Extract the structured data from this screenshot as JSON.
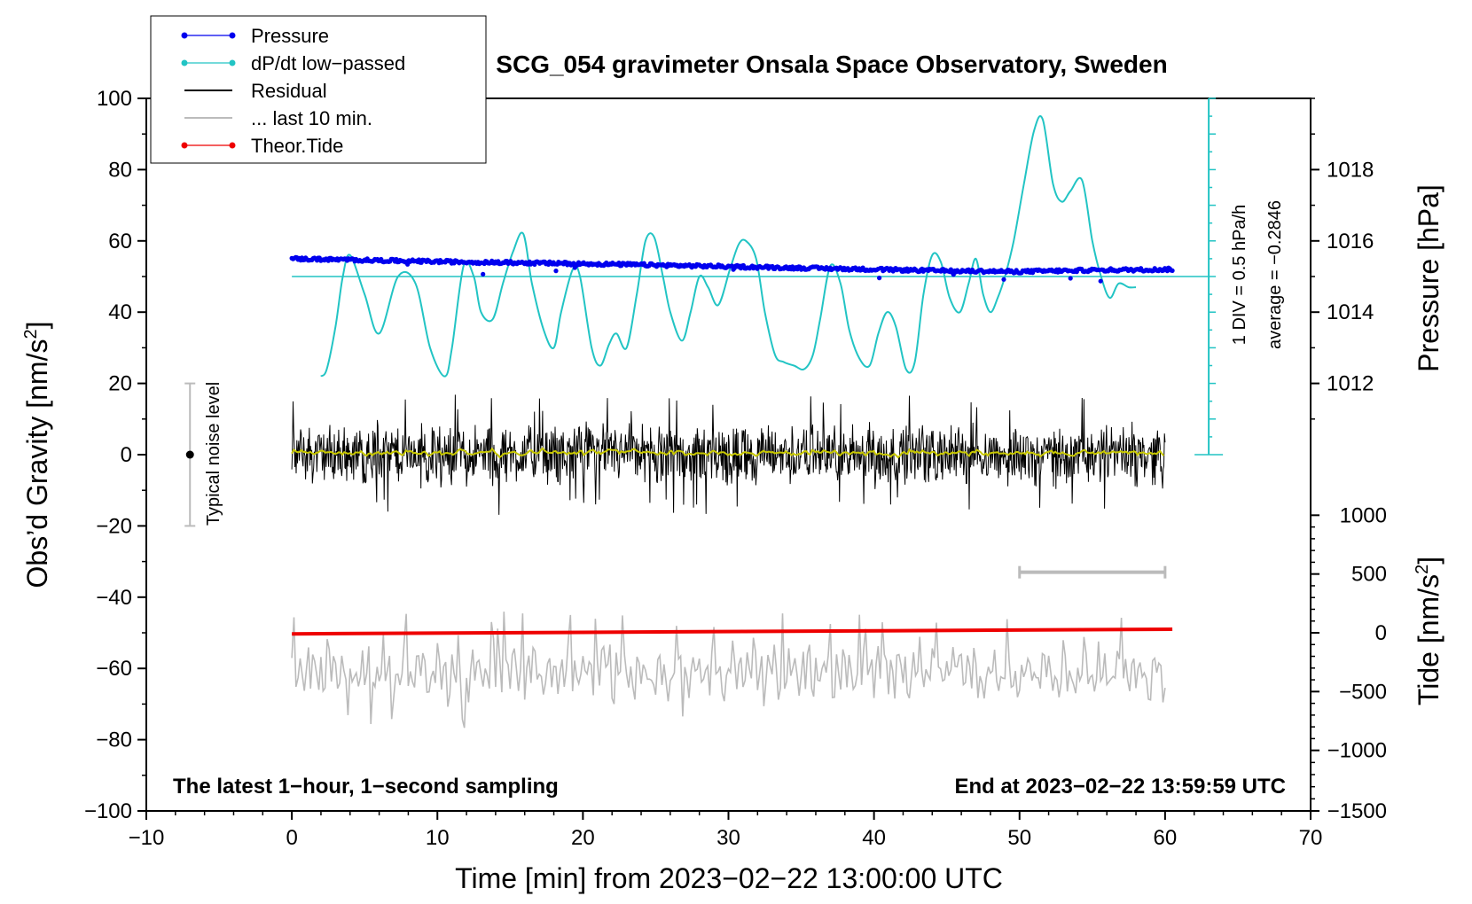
{
  "chart_data": {
    "type": "line",
    "title": "SCG_054 gravimeter Onsala Space Observatory, Sweden",
    "xlabel": "Time [min] from 2023−02−22 13:00:00 UTC",
    "ylabel": "Obs’d Gravity [nm/s²]",
    "ylabel_main": "Obs’d Gravity [nm/s",
    "ylabel_sup": "2",
    "ylabel_close": "]",
    "y2label": "Pressure [hPa]",
    "y3label_main": "Tide [nm/s",
    "y3label_sup": "2",
    "y3label_close": "]",
    "xlim": [
      -10,
      70
    ],
    "ylim": [
      -100,
      100
    ],
    "x_ticks": [
      -10,
      0,
      10,
      20,
      30,
      40,
      50,
      60,
      70
    ],
    "x_tick_labels": [
      "−10",
      "0",
      "10",
      "20",
      "30",
      "40",
      "50",
      "60",
      "70"
    ],
    "y_ticks": [
      -100,
      -80,
      -60,
      -40,
      -20,
      0,
      20,
      40,
      60,
      80,
      100
    ],
    "y_tick_labels": [
      "−100",
      "−80",
      "−60",
      "−40",
      "−20",
      "0",
      "20",
      "40",
      "60",
      "80",
      "100"
    ],
    "pressure_axis": {
      "ticks": [
        1012,
        1014,
        1016,
        1018
      ],
      "tick_labels": [
        "1012",
        "1014",
        "1016",
        "1018"
      ],
      "gravity_equivalent": [
        20,
        40,
        60,
        80
      ]
    },
    "tide_axis": {
      "ticks": [
        1000,
        500,
        0,
        -500,
        -1000,
        -1500
      ],
      "tick_labels": [
        "1000",
        "500",
        "0",
        "−500",
        "−1000",
        "−1500"
      ],
      "gravity_equivalent": [
        -17,
        -33.5,
        -50,
        -66.5,
        -83,
        -100
      ]
    },
    "legend": [
      {
        "label": "Pressure",
        "color": "#0000ee",
        "marker": true
      },
      {
        "label": "dP/dt low−passed",
        "color": "#22c4c4",
        "marker": true
      },
      {
        "label": "Residual",
        "color": "#000000",
        "marker": false
      },
      {
        "label": "... last 10 min.",
        "color": "#bbbbbb",
        "marker": false
      },
      {
        "label": "Theor.Tide",
        "color": "#ee0000",
        "marker": true
      }
    ],
    "legend_position": "top-left",
    "notes": {
      "bottom_left": "The latest 1−hour, 1−second sampling",
      "bottom_right": "End at 2023−02−22 13:59:59 UTC",
      "noise_label": "Typical noise level",
      "div_label": "1 DIV = 0.5 hPa/h",
      "average_label": "average = −0.2846"
    },
    "colors": {
      "pressure": "#0000ee",
      "dpdt": "#22c4c4",
      "residual": "#000000",
      "residual_smooth": "#c8c800",
      "last10": "#bbbbbb",
      "tide": "#ee0000"
    },
    "noise_bar": {
      "x": -7,
      "y": 0,
      "y_low": -20,
      "y_high": 20
    },
    "last10_bar": {
      "x_start": 50,
      "x_end": 60,
      "y": -33
    },
    "dpdt_scale": {
      "x": 63,
      "y_bottom": 0,
      "y_top": 100,
      "divisions": 20
    },
    "dpdt_baseline_y": 50,
    "series": [
      {
        "name": "Pressure",
        "x": [
          0,
          5,
          10,
          15,
          20,
          25,
          30,
          35,
          40,
          45,
          50,
          55,
          60.5
        ],
        "values": [
          55,
          54.6,
          54.2,
          53.9,
          53.6,
          53.2,
          52.8,
          52.4,
          52,
          51.6,
          51.4,
          51.8,
          52
        ]
      },
      {
        "name": "dP/dt low-passed",
        "x": [
          2,
          2.4,
          3,
          3.5,
          4,
          5,
          6,
          7.3,
          8.5,
          9.5,
          10.5,
          11,
          11.8,
          12.5,
          13,
          13.8,
          14.5,
          15.2,
          15.9,
          16.5,
          17.3,
          18,
          18.5,
          19.3,
          19.8,
          20.6,
          21.2,
          21.8,
          22.3,
          23,
          23.7,
          24.3,
          24.9,
          25.5,
          26,
          26.8,
          27.4,
          28,
          28.6,
          29.3,
          30.1,
          30.7,
          31.2,
          31.9,
          32.5,
          33.2,
          33.8,
          34.5,
          35.2,
          35.8,
          36.3,
          37,
          37.7,
          38.3,
          39,
          39.7,
          40.3,
          40.9,
          41.5,
          42.2,
          42.8,
          43.4,
          44,
          44.6,
          45.2,
          45.9,
          46.5,
          47,
          47.5,
          48,
          48.5,
          49,
          49.6,
          50.3,
          51,
          51.6,
          52.3,
          52.9,
          53.5,
          54.3,
          55,
          55.6,
          56.2,
          56.8,
          57.5,
          58
        ],
        "values": [
          22,
          24,
          36,
          50,
          56,
          45,
          34,
          50,
          48,
          30,
          22,
          30,
          53,
          50,
          40,
          38,
          48,
          57,
          62,
          48,
          35,
          30,
          40,
          52,
          50,
          30,
          25,
          31,
          34,
          30,
          45,
          60,
          61,
          50,
          40,
          32,
          40,
          50,
          47,
          42,
          52,
          59,
          60,
          55,
          40,
          28,
          26,
          25,
          24,
          28,
          38,
          53,
          48,
          35,
          27,
          25,
          34,
          40,
          36,
          24,
          26,
          45,
          56,
          54,
          44,
          40,
          48,
          55,
          45,
          40,
          44,
          50,
          60,
          76,
          91,
          94,
          76,
          71,
          74,
          77,
          60,
          50,
          44,
          48,
          47,
          47
        ]
      },
      {
        "name": "Residual",
        "x_start": 0,
        "x_end": 60,
        "center": 0,
        "amplitude": 10,
        "min": -18,
        "max": 17
      },
      {
        "name": "... last 10 min.",
        "x_start": 0,
        "x_end": 60,
        "center": -61,
        "min": -80,
        "max": -44
      },
      {
        "name": "Theor.Tide",
        "x": [
          0,
          60.5
        ],
        "values": [
          -50.3,
          -49
        ]
      }
    ]
  }
}
